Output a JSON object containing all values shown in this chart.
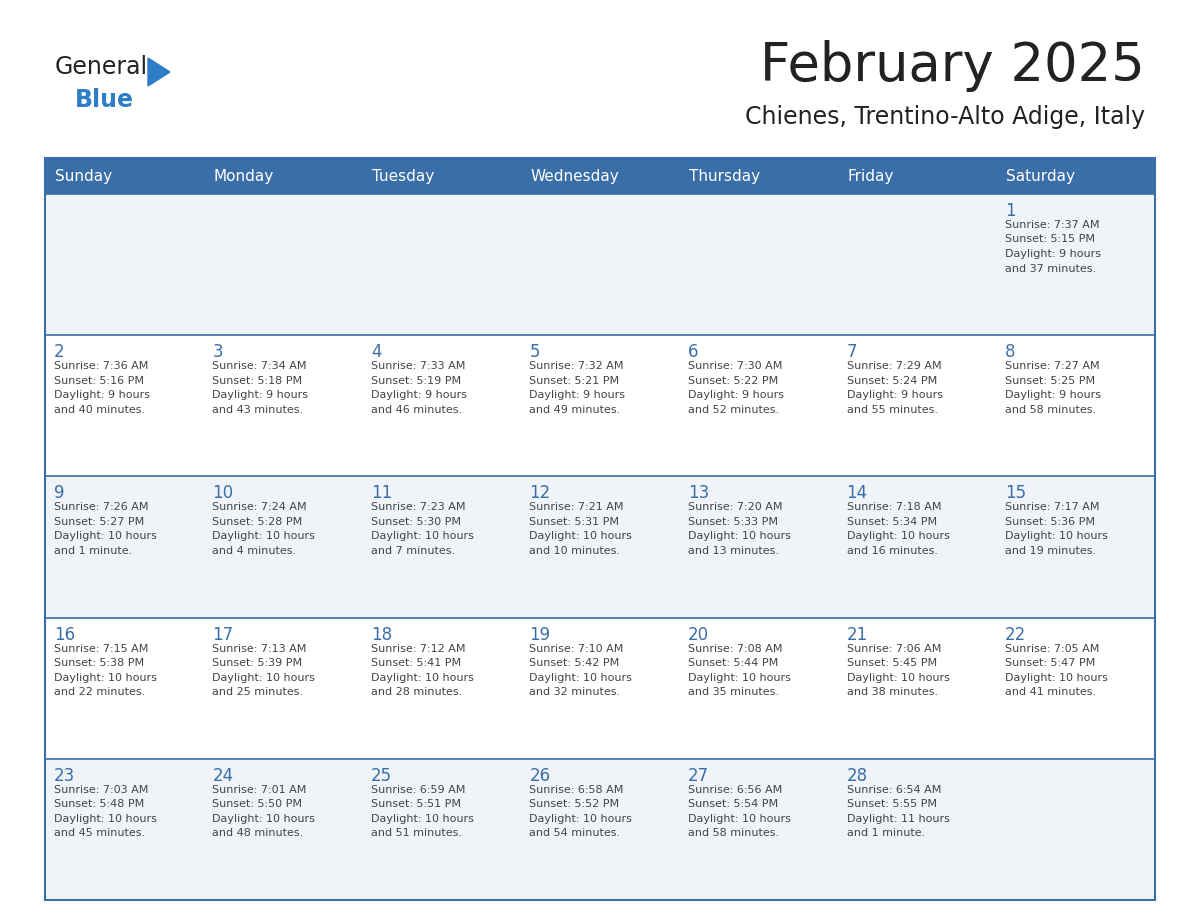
{
  "title": "February 2025",
  "subtitle": "Chienes, Trentino-Alto Adige, Italy",
  "days_of_week": [
    "Sunday",
    "Monday",
    "Tuesday",
    "Wednesday",
    "Thursday",
    "Friday",
    "Saturday"
  ],
  "header_bg": "#3a6ea8",
  "header_text": "#ffffff",
  "odd_row_bg": "#f0f4f8",
  "even_row_bg": "#ffffff",
  "border_color": "#3a6ea8",
  "day_number_color": "#3a6ea8",
  "text_color": "#444444",
  "title_color": "#222222",
  "calendar": [
    [
      null,
      null,
      null,
      null,
      null,
      null,
      {
        "day": 1,
        "sunrise": "7:37 AM",
        "sunset": "5:15 PM",
        "daylight_line1": "9 hours",
        "daylight_line2": "and 37 minutes."
      }
    ],
    [
      {
        "day": 2,
        "sunrise": "7:36 AM",
        "sunset": "5:16 PM",
        "daylight_line1": "9 hours",
        "daylight_line2": "and 40 minutes."
      },
      {
        "day": 3,
        "sunrise": "7:34 AM",
        "sunset": "5:18 PM",
        "daylight_line1": "9 hours",
        "daylight_line2": "and 43 minutes."
      },
      {
        "day": 4,
        "sunrise": "7:33 AM",
        "sunset": "5:19 PM",
        "daylight_line1": "9 hours",
        "daylight_line2": "and 46 minutes."
      },
      {
        "day": 5,
        "sunrise": "7:32 AM",
        "sunset": "5:21 PM",
        "daylight_line1": "9 hours",
        "daylight_line2": "and 49 minutes."
      },
      {
        "day": 6,
        "sunrise": "7:30 AM",
        "sunset": "5:22 PM",
        "daylight_line1": "9 hours",
        "daylight_line2": "and 52 minutes."
      },
      {
        "day": 7,
        "sunrise": "7:29 AM",
        "sunset": "5:24 PM",
        "daylight_line1": "9 hours",
        "daylight_line2": "and 55 minutes."
      },
      {
        "day": 8,
        "sunrise": "7:27 AM",
        "sunset": "5:25 PM",
        "daylight_line1": "9 hours",
        "daylight_line2": "and 58 minutes."
      }
    ],
    [
      {
        "day": 9,
        "sunrise": "7:26 AM",
        "sunset": "5:27 PM",
        "daylight_line1": "10 hours",
        "daylight_line2": "and 1 minute."
      },
      {
        "day": 10,
        "sunrise": "7:24 AM",
        "sunset": "5:28 PM",
        "daylight_line1": "10 hours",
        "daylight_line2": "and 4 minutes."
      },
      {
        "day": 11,
        "sunrise": "7:23 AM",
        "sunset": "5:30 PM",
        "daylight_line1": "10 hours",
        "daylight_line2": "and 7 minutes."
      },
      {
        "day": 12,
        "sunrise": "7:21 AM",
        "sunset": "5:31 PM",
        "daylight_line1": "10 hours",
        "daylight_line2": "and 10 minutes."
      },
      {
        "day": 13,
        "sunrise": "7:20 AM",
        "sunset": "5:33 PM",
        "daylight_line1": "10 hours",
        "daylight_line2": "and 13 minutes."
      },
      {
        "day": 14,
        "sunrise": "7:18 AM",
        "sunset": "5:34 PM",
        "daylight_line1": "10 hours",
        "daylight_line2": "and 16 minutes."
      },
      {
        "day": 15,
        "sunrise": "7:17 AM",
        "sunset": "5:36 PM",
        "daylight_line1": "10 hours",
        "daylight_line2": "and 19 minutes."
      }
    ],
    [
      {
        "day": 16,
        "sunrise": "7:15 AM",
        "sunset": "5:38 PM",
        "daylight_line1": "10 hours",
        "daylight_line2": "and 22 minutes."
      },
      {
        "day": 17,
        "sunrise": "7:13 AM",
        "sunset": "5:39 PM",
        "daylight_line1": "10 hours",
        "daylight_line2": "and 25 minutes."
      },
      {
        "day": 18,
        "sunrise": "7:12 AM",
        "sunset": "5:41 PM",
        "daylight_line1": "10 hours",
        "daylight_line2": "and 28 minutes."
      },
      {
        "day": 19,
        "sunrise": "7:10 AM",
        "sunset": "5:42 PM",
        "daylight_line1": "10 hours",
        "daylight_line2": "and 32 minutes."
      },
      {
        "day": 20,
        "sunrise": "7:08 AM",
        "sunset": "5:44 PM",
        "daylight_line1": "10 hours",
        "daylight_line2": "and 35 minutes."
      },
      {
        "day": 21,
        "sunrise": "7:06 AM",
        "sunset": "5:45 PM",
        "daylight_line1": "10 hours",
        "daylight_line2": "and 38 minutes."
      },
      {
        "day": 22,
        "sunrise": "7:05 AM",
        "sunset": "5:47 PM",
        "daylight_line1": "10 hours",
        "daylight_line2": "and 41 minutes."
      }
    ],
    [
      {
        "day": 23,
        "sunrise": "7:03 AM",
        "sunset": "5:48 PM",
        "daylight_line1": "10 hours",
        "daylight_line2": "and 45 minutes."
      },
      {
        "day": 24,
        "sunrise": "7:01 AM",
        "sunset": "5:50 PM",
        "daylight_line1": "10 hours",
        "daylight_line2": "and 48 minutes."
      },
      {
        "day": 25,
        "sunrise": "6:59 AM",
        "sunset": "5:51 PM",
        "daylight_line1": "10 hours",
        "daylight_line2": "and 51 minutes."
      },
      {
        "day": 26,
        "sunrise": "6:58 AM",
        "sunset": "5:52 PM",
        "daylight_line1": "10 hours",
        "daylight_line2": "and 54 minutes."
      },
      {
        "day": 27,
        "sunrise": "6:56 AM",
        "sunset": "5:54 PM",
        "daylight_line1": "10 hours",
        "daylight_line2": "and 58 minutes."
      },
      {
        "day": 28,
        "sunrise": "6:54 AM",
        "sunset": "5:55 PM",
        "daylight_line1": "11 hours",
        "daylight_line2": "and 1 minute."
      },
      null
    ]
  ],
  "logo_text_general": "General",
  "logo_text_blue": "Blue",
  "logo_blue_color": "#2e7ec7",
  "logo_dark_color": "#222222"
}
